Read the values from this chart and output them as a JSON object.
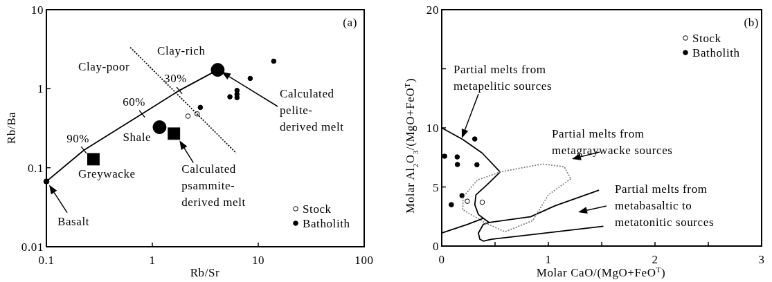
{
  "chart_data": [
    {
      "type": "scatter",
      "xlabel": "Rb/Sr",
      "ylabel": "Rb/Ba",
      "log": "xy",
      "xlim": [
        0.1,
        100
      ],
      "ylim": [
        0.01,
        10
      ],
      "xticks": [
        0.1,
        1,
        10,
        100
      ],
      "yticks": [
        0.01,
        0.1,
        1,
        10
      ],
      "legend": "bottom right",
      "annotations": [
        "(a)",
        "Clay-rich",
        "Clay-poor",
        {
          "text": "30%",
          "x": 1.8,
          "y": 0.95
        },
        {
          "text": "60%",
          "x": 0.8,
          "y": 0.48
        },
        {
          "text": "90%",
          "x": 0.226,
          "y": 0.167
        },
        {
          "text": "Shale",
          "x": 1.17,
          "y": 0.326
        },
        {
          "text": "Greywacke",
          "x": 0.278,
          "y": 0.128
        },
        {
          "text": "Basalt",
          "x": 0.1,
          "y": 0.067
        },
        "Calculated\npelite-\nderived melt",
        {
          "text": "Calculated\npsammite-\nderived melt",
          "x": 1.6,
          "y": 0.27
        }
      ],
      "series": [
        {
          "name": "Stock",
          "type": "scatter",
          "marker": "circle",
          "color": "#ffffff",
          "x": [
            2.17,
            2.65
          ],
          "values": [
            0.45,
            0.48
          ]
        },
        {
          "name": "Batholith",
          "type": "scatter",
          "marker": "circle",
          "color": "#000000",
          "x": [
            14,
            8.4,
            6.3,
            6.3,
            6.3,
            5.4,
            2.84
          ],
          "values": [
            2.23,
            1.35,
            0.95,
            0.85,
            0.77,
            0.79,
            0.58
          ]
        },
        {
          "type": "bubble",
          "marker": "circle",
          "color": "#000000",
          "x": [
            4.14,
            1.17
          ],
          "values": [
            1.73,
            0.326
          ],
          "sizes": [
            1,
            1
          ]
        },
        {
          "type": "bubble",
          "marker": "square",
          "color": "#000000",
          "x": [
            1.6,
            0.278
          ],
          "values": [
            0.27,
            0.128
          ],
          "sizes": [
            1,
            1
          ]
        },
        {
          "type": "scatter",
          "marker": "circle",
          "color": "#000000",
          "x": [
            0.1
          ],
          "values": [
            0.067
          ]
        },
        {
          "type": "line",
          "line_style": "solid",
          "color": "#000000",
          "x": [
            0.1,
            0.226,
            0.8,
            1.8,
            4.14
          ],
          "values": [
            0.067,
            0.167,
            0.48,
            0.95,
            1.73
          ]
        },
        {
          "type": "line",
          "line_style": "dotted",
          "color": "#000000",
          "x": [
            0.62,
            6.2
          ],
          "values": [
            3.33,
            0.153
          ]
        }
      ]
    },
    {
      "type": "scatter",
      "xlabel": "Molar CaO/(MgO+FeO$^{T}$)",
      "ylabel": "Molar Al$_{2}$O$_{3}$/(MgO+FeO$^{T}$)",
      "xlim": [
        0,
        3
      ],
      "ylim": [
        0,
        20
      ],
      "xticks": [
        0,
        {
          "value": 0.5,
          "label": null
        },
        1,
        {
          "value": 1.5,
          "label": null
        },
        2,
        {
          "value": 2.5,
          "label": null
        },
        3
      ],
      "yticks": [
        0,
        5,
        10,
        {
          "value": 15,
          "label": null
        },
        20
      ],
      "legend": "top right",
      "annotations": [
        "(b)",
        "Partial melts from\nmetapelitic sources",
        "Partial melts from\nmetagraywacke sources",
        "Partial melts from\nmetabasaltic to\nmetatonitic sources"
      ],
      "series": [
        {
          "name": "Stock",
          "type": "scatter",
          "marker": "circle",
          "color": "#ffffff",
          "x": [
            0.24,
            0.38
          ],
          "values": [
            3.79,
            3.71
          ]
        },
        {
          "name": "Batholith",
          "type": "scatter",
          "marker": "circle",
          "color": "#000000",
          "x": [
            0.027,
            0.145,
            0.147,
            0.31,
            0.33,
            0.19,
            0.09
          ],
          "values": [
            7.6,
            7.54,
            6.9,
            9.06,
            6.88,
            4.27,
            3.5
          ]
        },
        {
          "type": "line",
          "line_style": "solid",
          "color": "#000000",
          "x": [
            0,
            0.197,
            0.378,
            0.548,
            0.423,
            0.321,
            0.31,
            0.344,
            0.389,
            0.242,
            0
          ],
          "values": [
            10,
            9.02,
            7.88,
            6.27,
            5.17,
            4.33,
            3.5,
            2.67,
            2.35,
            1.83,
            1.1
          ]
        },
        {
          "type": "line",
          "line_style": "solid",
          "color": "#000000",
          "x": [
            0.389,
            0.445,
            0.833,
            1.06,
            1.475
          ],
          "values": [
            2.35,
            1.99,
            2.48,
            3.4,
            4.73
          ]
        },
        {
          "type": "line",
          "line_style": "solid",
          "color": "#000000",
          "x": [
            1.516,
            0.468,
            0.389,
            0.357,
            0.344,
            0.389,
            0.445
          ],
          "values": [
            1.67,
            0.58,
            0.42,
            0.58,
            1.1,
            1.83,
            1.99
          ]
        },
        {
          "type": "line",
          "line_style": "dotted",
          "color": "#808080",
          "x": [
            0.197,
            0.2,
            0.333,
            0.548,
            0.943,
            1.15,
            1.21
          ],
          "values": [
            3.08,
            4.13,
            5.58,
            6.27,
            6.94,
            6.7,
            5.69
          ]
        },
        {
          "type": "line",
          "line_style": "dotted",
          "color": "#808080",
          "x": [
            1.21,
            1.0,
            0.853,
            0.593,
            0.412,
            0.197
          ],
          "values": [
            5.69,
            4.33,
            2.15,
            1.21,
            1.94,
            3.08
          ]
        }
      ]
    }
  ]
}
